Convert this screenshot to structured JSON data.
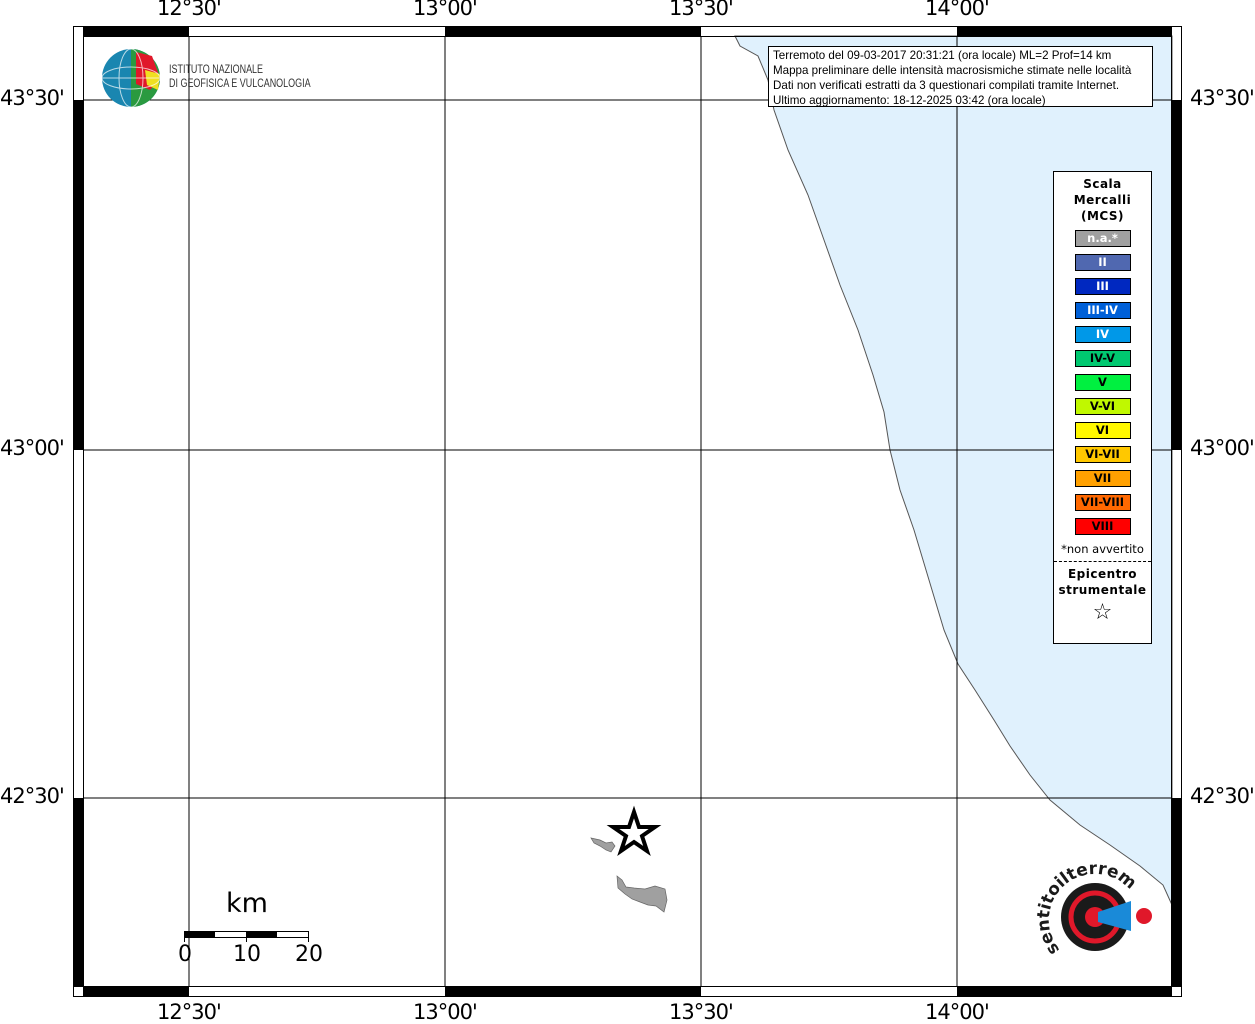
{
  "map": {
    "lon_labels": [
      "12°30'",
      "13°00'",
      "13°30'",
      "14°00'"
    ],
    "lat_labels": [
      "43°30'",
      "43°00'",
      "42°30'"
    ],
    "colors": {
      "sea": "#e0f1fd",
      "island": "#a0a0a0",
      "grid": "#000000"
    }
  },
  "info": {
    "line1": "Terremoto del 09-03-2017 20:31:21 (ora locale) ML=2 Prof=14 km",
    "line2": "Mappa preliminare delle intensità macrosismiche stimate nelle località",
    "line3": "Dati non verificati estratti da 3 questionari compilati tramite Internet.",
    "line4": "Ultimo aggiornamento: 18-12-2025 03:42 (ora locale)"
  },
  "logo": {
    "ingv_line1": "ISTITUTO NAZIONALE",
    "ingv_line2": "DI GEOFISICA E VULCANOLOGIA",
    "hsit": "www.haisentitoilterremoto.it"
  },
  "legend": {
    "title1": "Scala",
    "title2": "Mercalli",
    "title3": "(MCS)",
    "items": [
      {
        "label": "n.a.*",
        "color": "#a0a0a0",
        "text": "#ffffff"
      },
      {
        "label": "II",
        "color": "#5068b0",
        "text": "#ffffff"
      },
      {
        "label": "III",
        "color": "#0028c0",
        "text": "#ffffff"
      },
      {
        "label": "III-IV",
        "color": "#0060d8",
        "text": "#ffffff"
      },
      {
        "label": "IV",
        "color": "#0098e8",
        "text": "#ffffff"
      },
      {
        "label": "IV-V",
        "color": "#00c870",
        "text": "#000000"
      },
      {
        "label": "V",
        "color": "#00f040",
        "text": "#000000"
      },
      {
        "label": "V-VI",
        "color": "#c0f800",
        "text": "#000000"
      },
      {
        "label": "VI",
        "color": "#fff800",
        "text": "#000000"
      },
      {
        "label": "VI-VII",
        "color": "#ffc800",
        "text": "#000000"
      },
      {
        "label": "VII",
        "color": "#ffa000",
        "text": "#000000"
      },
      {
        "label": "VII-VIII",
        "color": "#ff6800",
        "text": "#000000"
      },
      {
        "label": "VIII",
        "color": "#ff0000",
        "text": "#000000"
      }
    ],
    "note": "*non avvertito",
    "epicenter1": "Epicentro",
    "epicenter2": "strumentale"
  },
  "scale_bar": {
    "unit": "km",
    "ticks": [
      "0",
      "10",
      "20"
    ]
  }
}
